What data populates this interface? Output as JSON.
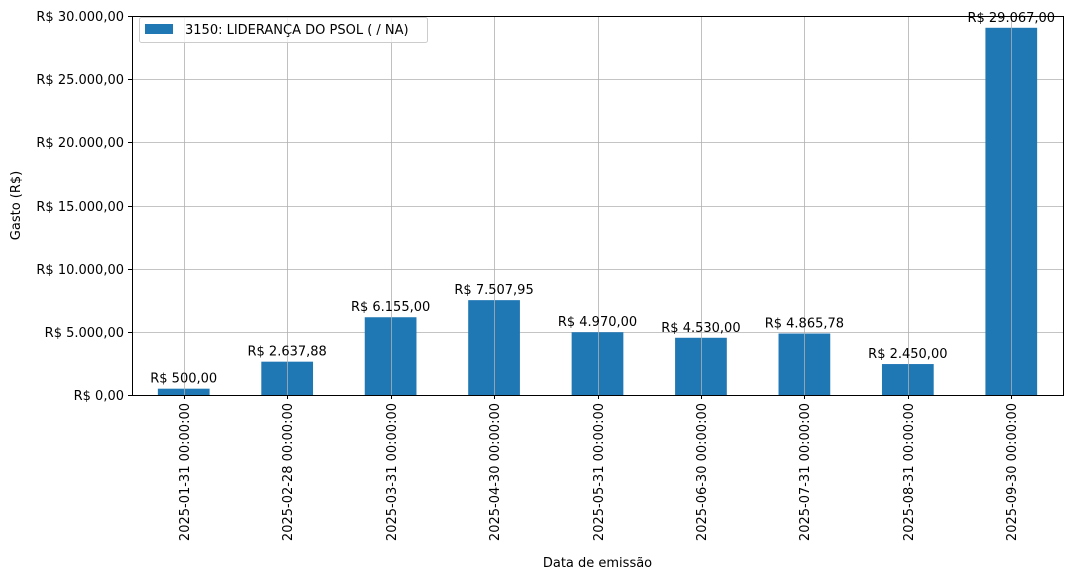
{
  "chart_data": {
    "type": "bar",
    "title": "",
    "xlabel": "Data de emissão",
    "ylabel": "Gasto (R$)",
    "ylim": [
      0,
      30000
    ],
    "grid": true,
    "legend_position": "upper left",
    "categories": [
      "2025-01-31 00:00:00",
      "2025-02-28 00:00:00",
      "2025-03-31 00:00:00",
      "2025-04-30 00:00:00",
      "2025-05-31 00:00:00",
      "2025-06-30 00:00:00",
      "2025-07-31 00:00:00",
      "2025-08-31 00:00:00",
      "2025-09-30 00:00:00"
    ],
    "series": [
      {
        "name": "3150: LIDERANÇA DO PSOL ( / NA)",
        "color": "#1f77b4",
        "values": [
          500.0,
          2637.88,
          6155.0,
          7507.95,
          4970.0,
          4530.0,
          4865.78,
          2450.0,
          29067.0
        ],
        "data_labels": [
          "R$ 500,00",
          "R$ 2.637,88",
          "R$ 6.155,00",
          "R$ 7.507,95",
          "R$ 4.970,00",
          "R$ 4.530,00",
          "R$ 4.865,78",
          "R$ 2.450,00",
          "R$ 29.067,00"
        ]
      }
    ],
    "yticks": [
      0,
      5000,
      10000,
      15000,
      20000,
      25000,
      30000
    ],
    "ytick_labels": [
      "R$ 0,00",
      "R$ 5.000,00",
      "R$ 10.000,00",
      "R$ 15.000,00",
      "R$ 20.000,00",
      "R$ 25.000,00",
      "R$ 30.000,00"
    ]
  },
  "colors": {
    "bar": "#1f77b4",
    "grid": "#b0b0b0",
    "axis": "#000000",
    "legend_border": "#cccccc"
  }
}
